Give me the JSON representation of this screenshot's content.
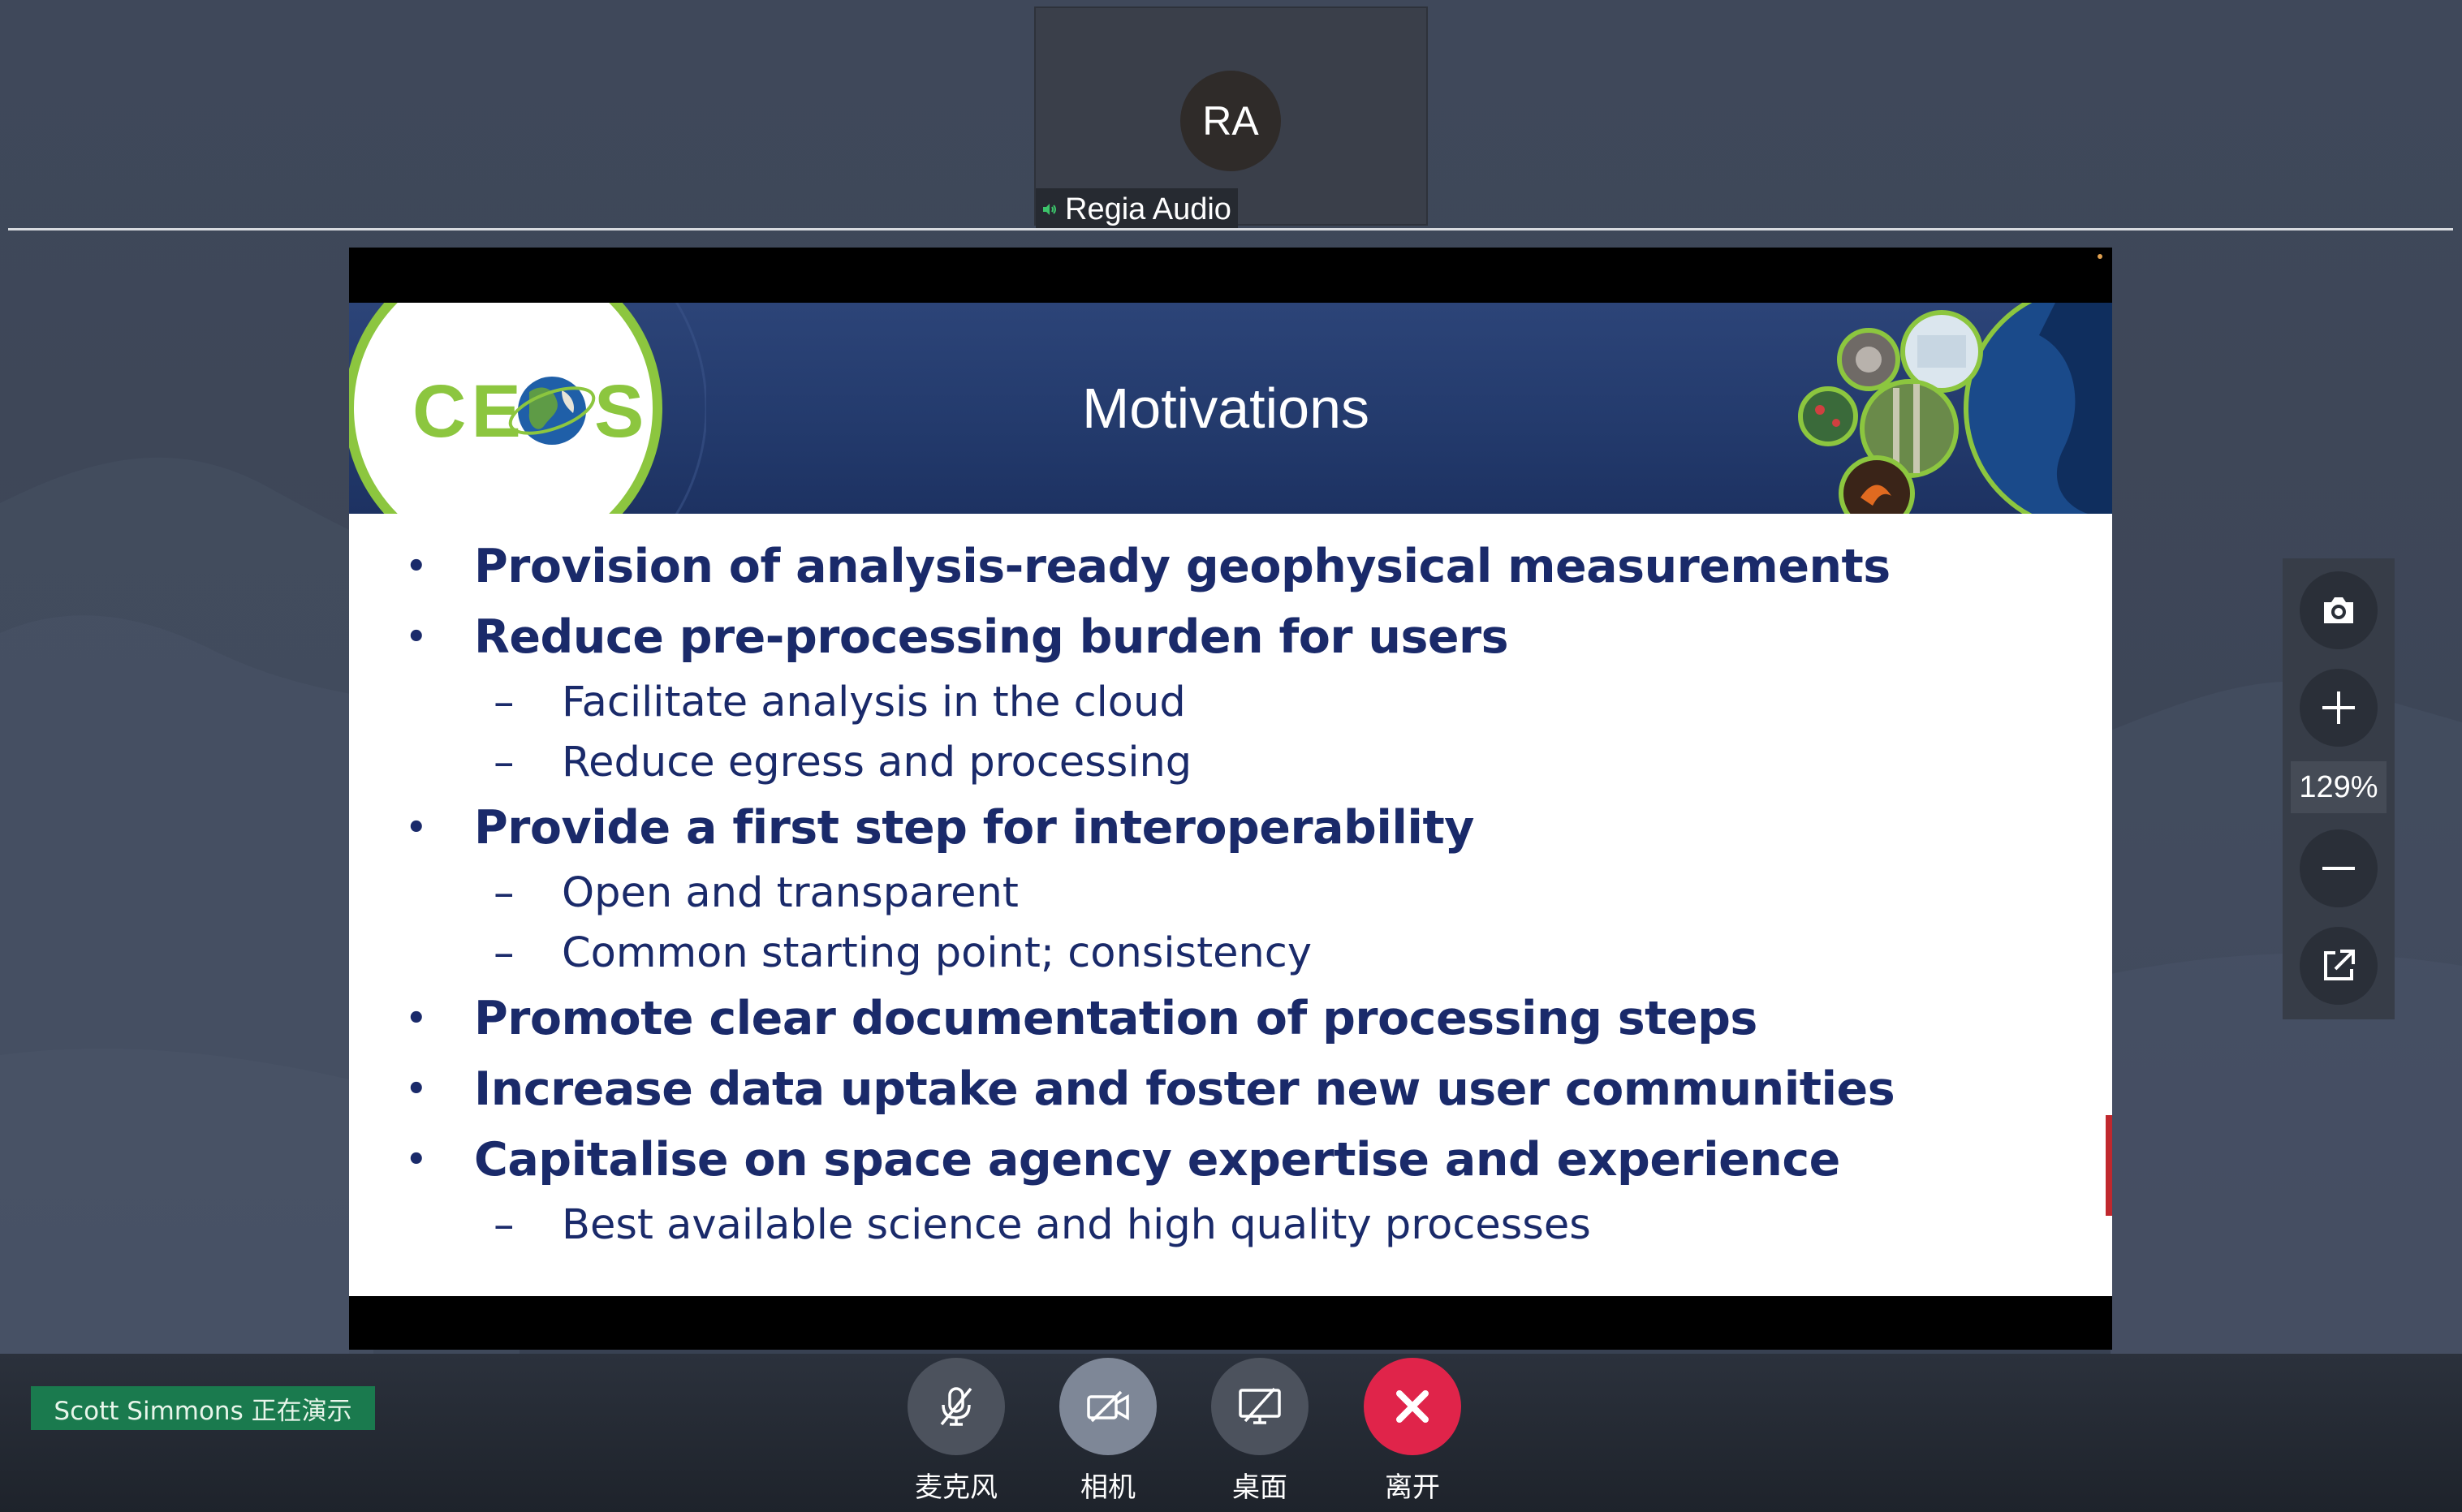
{
  "participant": {
    "initials": "RA",
    "name": "Regia Audio"
  },
  "slide": {
    "logo_text": "CE S",
    "title": "Motivations",
    "bullets": [
      {
        "text": "Provision of analysis-ready geophysical measurements"
      },
      {
        "text": "Reduce pre-processing burden for users",
        "sub": [
          "Facilitate analysis in the cloud",
          "Reduce egress and processing"
        ]
      },
      {
        "text": "Provide a first step for interoperability",
        "sub": [
          "Open and transparent",
          "Common starting point; consistency"
        ]
      },
      {
        "text": "Promote clear documentation of processing steps"
      },
      {
        "text": "Increase data uptake and foster new user communities"
      },
      {
        "text": "Capitalise on space agency expertise and experience",
        "sub": [
          "Best available science and high quality processes"
        ]
      }
    ]
  },
  "zoom": {
    "level": "129%",
    "icons": [
      "camera-icon",
      "plus-icon",
      "minus-icon",
      "external-link-icon"
    ]
  },
  "presenter": {
    "label": "Scott  Simmons 正在演示"
  },
  "controls": {
    "mic": "麦克风",
    "camera": "相机",
    "desktop": "桌面",
    "leave": "离开"
  },
  "colors": {
    "leave_button": "#e0244a",
    "presenter_badge": "#1a7a4e",
    "slide_text": "#1a2a6a",
    "slide_header": "#233a6c",
    "ceos_green": "#8cc63f"
  }
}
